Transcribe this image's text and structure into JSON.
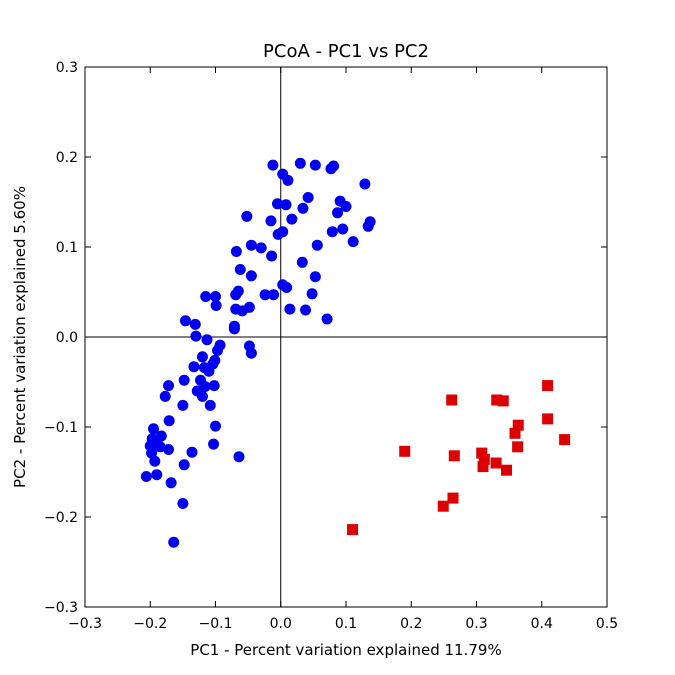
{
  "chart_data": {
    "type": "scatter",
    "title": "PCoA - PC1 vs PC2",
    "xlabel": "PC1 - Percent variation explained 11.79%",
    "ylabel": "PC2 - Percent variation explained 5.60%",
    "xlim": [
      -0.3,
      0.5
    ],
    "ylim": [
      -0.3,
      0.3
    ],
    "xticks": [
      "−0.3",
      "−0.2",
      "−0.1",
      "0.0",
      "0.1",
      "0.2",
      "0.3",
      "0.4",
      "0.5"
    ],
    "yticks": [
      "−0.3",
      "−0.2",
      "−0.1",
      "0.0",
      "0.1",
      "0.2",
      "0.3"
    ],
    "grid": false,
    "reference_lines": "x=0, y=0",
    "series": [
      {
        "color": "#0000ee",
        "marker": "circle",
        "points": [
          [
            -0.012,
            0.191
          ],
          [
            0.03,
            0.193
          ],
          [
            0.053,
            0.191
          ],
          [
            0.077,
            0.187
          ],
          [
            0.081,
            0.19
          ],
          [
            0.003,
            0.181
          ],
          [
            0.011,
            0.174
          ],
          [
            0.129,
            0.17
          ],
          [
            0.042,
            0.155
          ],
          [
            0.091,
            0.151
          ],
          [
            -0.005,
            0.148
          ],
          [
            0.008,
            0.147
          ],
          [
            0.034,
            0.143
          ],
          [
            0.1,
            0.145
          ],
          [
            0.087,
            0.138
          ],
          [
            -0.052,
            0.134
          ],
          [
            -0.015,
            0.129
          ],
          [
            0.017,
            0.131
          ],
          [
            0.137,
            0.128
          ],
          [
            0.134,
            0.123
          ],
          [
            0.095,
            0.12
          ],
          [
            0.003,
            0.117
          ],
          [
            -0.004,
            0.114
          ],
          [
            0.079,
            0.117
          ],
          [
            0.111,
            0.106
          ],
          [
            -0.045,
            0.102
          ],
          [
            -0.03,
            0.099
          ],
          [
            0.056,
            0.102
          ],
          [
            -0.068,
            0.095
          ],
          [
            -0.014,
            0.09
          ],
          [
            0.033,
            0.083
          ],
          [
            -0.062,
            0.075
          ],
          [
            -0.045,
            0.068
          ],
          [
            0.053,
            0.067
          ],
          [
            0.003,
            0.058
          ],
          [
            0.009,
            0.055
          ],
          [
            -0.065,
            0.051
          ],
          [
            -0.069,
            0.047
          ],
          [
            -0.024,
            0.047
          ],
          [
            -0.011,
            0.047
          ],
          [
            0.048,
            0.048
          ],
          [
            -0.115,
            0.045
          ],
          [
            -0.1,
            0.045
          ],
          [
            -0.099,
            0.035
          ],
          [
            -0.048,
            0.033
          ],
          [
            -0.069,
            0.031
          ],
          [
            -0.059,
            0.029
          ],
          [
            0.014,
            0.031
          ],
          [
            0.038,
            0.03
          ],
          [
            0.071,
            0.02
          ],
          [
            -0.146,
            0.018
          ],
          [
            -0.131,
            0.014
          ],
          [
            -0.071,
            0.012
          ],
          [
            -0.071,
            0.009
          ],
          [
            -0.13,
            0.001
          ],
          [
            -0.113,
            -0.003
          ],
          [
            -0.093,
            -0.009
          ],
          [
            -0.048,
            -0.01
          ],
          [
            -0.097,
            -0.015
          ],
          [
            -0.045,
            -0.018
          ],
          [
            -0.12,
            -0.022
          ],
          [
            -0.101,
            -0.026
          ],
          [
            -0.133,
            -0.033
          ],
          [
            -0.117,
            -0.034
          ],
          [
            -0.104,
            -0.03
          ],
          [
            -0.11,
            -0.038
          ],
          [
            -0.148,
            -0.048
          ],
          [
            -0.123,
            -0.048
          ],
          [
            -0.102,
            -0.054
          ],
          [
            -0.172,
            -0.054
          ],
          [
            -0.116,
            -0.055
          ],
          [
            -0.128,
            -0.06
          ],
          [
            -0.12,
            -0.066
          ],
          [
            -0.177,
            -0.066
          ],
          [
            -0.15,
            -0.076
          ],
          [
            -0.108,
            -0.076
          ],
          [
            -0.171,
            -0.093
          ],
          [
            -0.1,
            -0.099
          ],
          [
            -0.195,
            -0.102
          ],
          [
            -0.183,
            -0.11
          ],
          [
            -0.197,
            -0.113
          ],
          [
            -0.189,
            -0.119
          ],
          [
            -0.2,
            -0.121
          ],
          [
            -0.185,
            -0.122
          ],
          [
            -0.103,
            -0.119
          ],
          [
            -0.172,
            -0.125
          ],
          [
            -0.198,
            -0.129
          ],
          [
            -0.136,
            -0.128
          ],
          [
            -0.064,
            -0.133
          ],
          [
            -0.193,
            -0.138
          ],
          [
            -0.148,
            -0.142
          ],
          [
            -0.206,
            -0.155
          ],
          [
            -0.19,
            -0.153
          ],
          [
            -0.168,
            -0.162
          ],
          [
            -0.15,
            -0.185
          ],
          [
            -0.164,
            -0.228
          ]
        ]
      },
      {
        "color": "#dd0000",
        "marker": "square",
        "points": [
          [
            0.409,
            -0.054
          ],
          [
            0.262,
            -0.07
          ],
          [
            0.331,
            -0.07
          ],
          [
            0.341,
            -0.071
          ],
          [
            0.409,
            -0.091
          ],
          [
            0.364,
            -0.098
          ],
          [
            0.435,
            -0.114
          ],
          [
            0.359,
            -0.107
          ],
          [
            0.363,
            -0.122
          ],
          [
            0.19,
            -0.127
          ],
          [
            0.308,
            -0.129
          ],
          [
            0.266,
            -0.132
          ],
          [
            0.312,
            -0.136
          ],
          [
            0.33,
            -0.14
          ],
          [
            0.31,
            -0.144
          ],
          [
            0.346,
            -0.148
          ],
          [
            0.264,
            -0.179
          ],
          [
            0.249,
            -0.188
          ],
          [
            0.11,
            -0.214
          ]
        ]
      }
    ]
  }
}
